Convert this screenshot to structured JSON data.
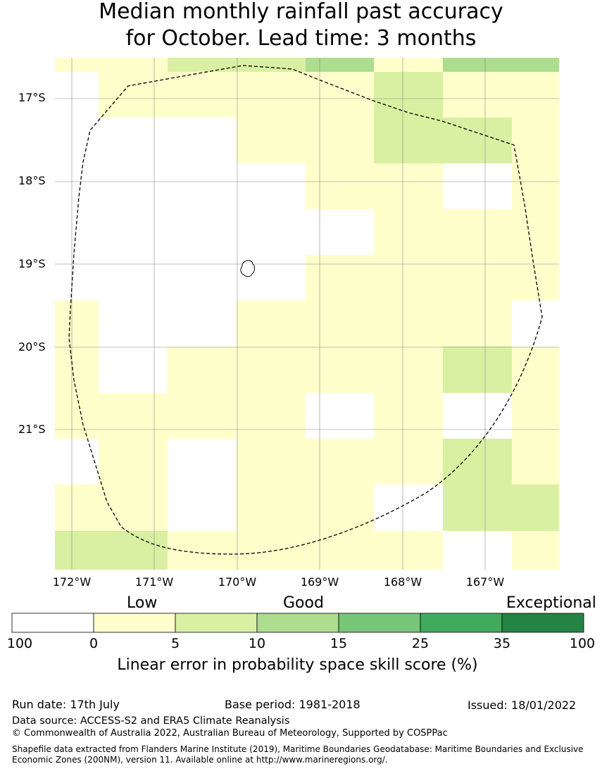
{
  "title": {
    "line1": "Median monthly rainfall past accuracy",
    "line2": "for October. Lead time: 3 months"
  },
  "map": {
    "lat_labels": [
      "17°S",
      "18°S",
      "19°S",
      "20°S",
      "21°S"
    ],
    "lon_labels": [
      "172°W",
      "171°W",
      "170°W",
      "169°W",
      "168°W",
      "167°W"
    ],
    "features": [
      "eez-boundary-dashed",
      "island-outline"
    ]
  },
  "legend": {
    "categories": [
      "Low",
      "Good",
      "Exceptional"
    ],
    "ticks": [
      "100",
      "0",
      "5",
      "10",
      "15",
      "25",
      "35",
      "100"
    ],
    "colors": [
      "#ffffff",
      "#ffffcc",
      "#d9f0a3",
      "#addd8e",
      "#78c679",
      "#41ab5d",
      "#238443"
    ],
    "label": "Linear error in probability space skill score (%)"
  },
  "footer": {
    "run_date": "Run date: 17th July",
    "base_period": "Base period: 1981-2018",
    "issued": "Issued: 18/01/2022",
    "data_source": "Data source: ACCESS-S2 and ERA5 Climate Reanalysis",
    "copyright": "© Commonwealth of Australia 2022, Australian Bureau of Meteorology, Supported by COSPPac",
    "shapefile_note": "Shapefile data extracted from Flanders Marine Institute (2019), Maritime Boundaries Geodatabase: Maritime Boundaries and Exclusive Economic Zones (200NM), version 11. Available online at http://www.marineregions.org/."
  }
}
